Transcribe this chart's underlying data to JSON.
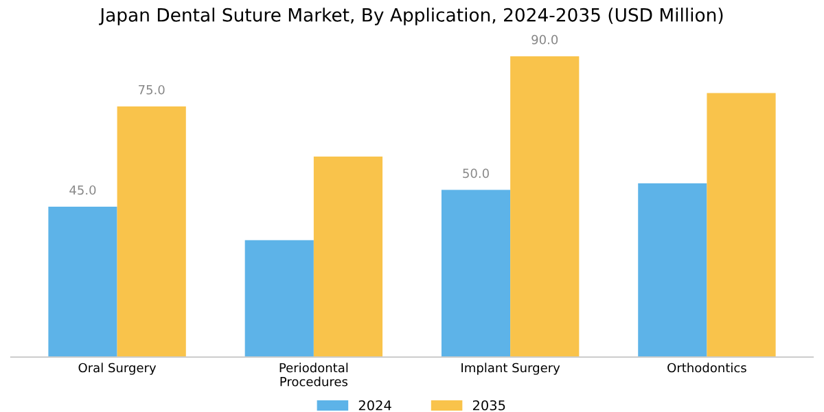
{
  "chart_data": {
    "type": "bar",
    "title": "Japan Dental Suture Market, By Application, 2024-2035 (USD Million)",
    "categories": [
      "Oral Surgery",
      "Periodontal\nProcedures",
      "Implant Surgery",
      "Orthodontics"
    ],
    "series": [
      {
        "name": "2024",
        "color": "#5db3e8",
        "values": [
          45.0,
          35,
          50.0,
          52
        ],
        "value_labels": [
          "45.0",
          null,
          "50.0",
          null
        ]
      },
      {
        "name": "2035",
        "color": "#f9c34b",
        "values": [
          75.0,
          60,
          90.0,
          79
        ],
        "value_labels": [
          "75.0",
          null,
          "90.0",
          null
        ]
      }
    ],
    "tick_labels": "x",
    "grid": false,
    "legend": "bottom"
  }
}
